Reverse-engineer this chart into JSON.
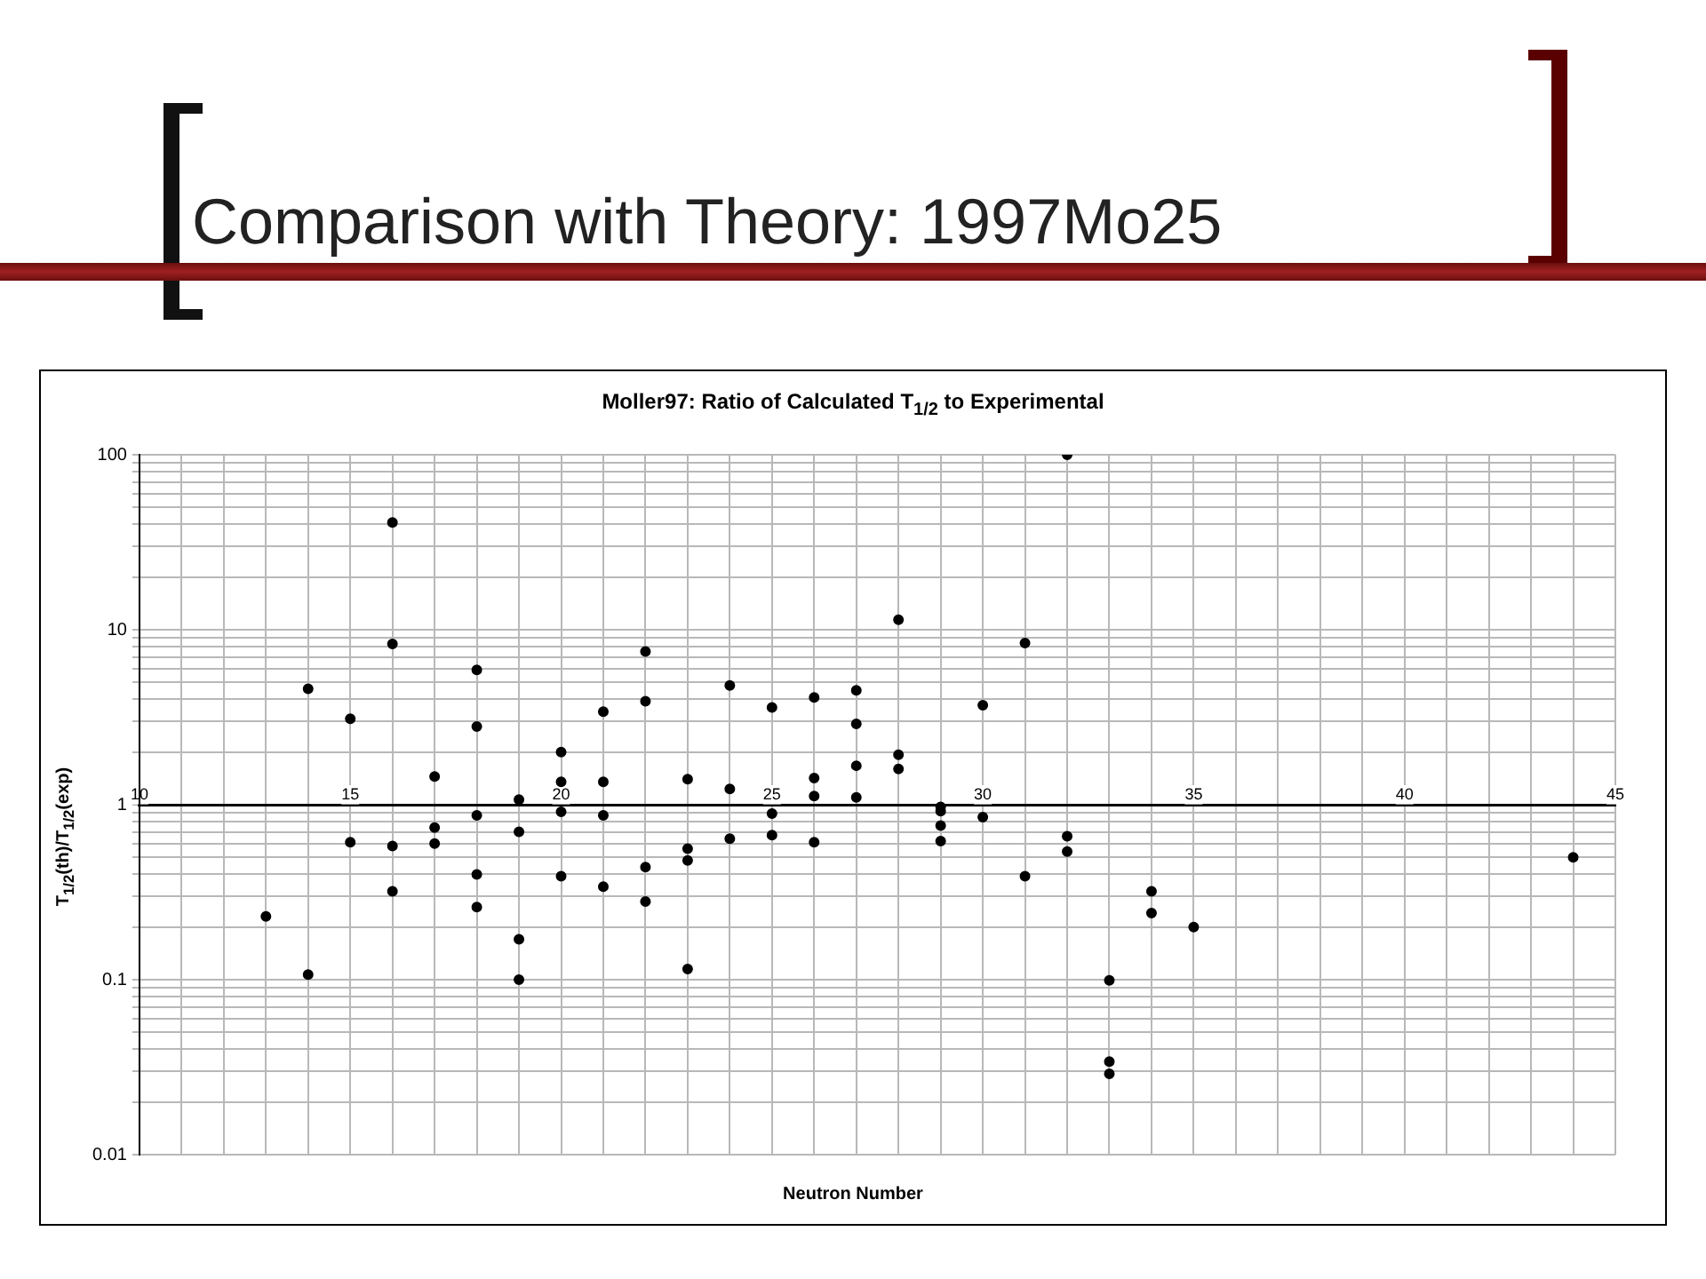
{
  "chart_data": {
    "type": "scatter",
    "title": "Comparison with Theory: 1997Mo25",
    "subtitle": "Moller97: Ratio of Calculated T$_{1/2}$ to Experimental",
    "xlabel": "Neutron Number",
    "ylabel": "T$_{1/2}$(th)/T$_{1/2}$(exp)",
    "log": "y",
    "grid": true,
    "legend": false,
    "marker": "circle",
    "xlim": [
      10,
      45
    ],
    "xticks": [
      10,
      {
        "value": 11,
        "label": null
      },
      {
        "value": 12,
        "label": null
      },
      {
        "value": 13,
        "label": null
      },
      {
        "value": 14,
        "label": null
      },
      15,
      {
        "value": 16,
        "label": null
      },
      {
        "value": 17,
        "label": null
      },
      {
        "value": 18,
        "label": null
      },
      {
        "value": 19,
        "label": null
      },
      20,
      {
        "value": 21,
        "label": null
      },
      {
        "value": 22,
        "label": null
      },
      {
        "value": 23,
        "label": null
      },
      {
        "value": 24,
        "label": null
      },
      25,
      {
        "value": 26,
        "label": null
      },
      {
        "value": 27,
        "label": null
      },
      {
        "value": 28,
        "label": null
      },
      {
        "value": 29,
        "label": null
      },
      30,
      {
        "value": 31,
        "label": null
      },
      {
        "value": 32,
        "label": null
      },
      {
        "value": 33,
        "label": null
      },
      {
        "value": 34,
        "label": null
      },
      35,
      {
        "value": 36,
        "label": null
      },
      {
        "value": 37,
        "label": null
      },
      {
        "value": 38,
        "label": null
      },
      {
        "value": 39,
        "label": null
      },
      40,
      {
        "value": 41,
        "label": null
      },
      {
        "value": 42,
        "label": null
      },
      {
        "value": 43,
        "label": null
      },
      {
        "value": 44,
        "label": null
      },
      45
    ],
    "ylim": [
      0.01,
      100
    ],
    "yticks": [
      0.01,
      {
        "value": 0.02,
        "label": null
      },
      {
        "value": 0.03,
        "label": null
      },
      {
        "value": 0.04,
        "label": null
      },
      {
        "value": 0.05,
        "label": null
      },
      {
        "value": 0.06,
        "label": null
      },
      {
        "value": 0.07,
        "label": null
      },
      {
        "value": 0.08,
        "label": null
      },
      {
        "value": 0.09,
        "label": null
      },
      0.1,
      {
        "value": 0.2,
        "label": null
      },
      {
        "value": 0.3,
        "label": null
      },
      {
        "value": 0.4,
        "label": null
      },
      {
        "value": 0.5,
        "label": null
      },
      {
        "value": 0.6,
        "label": null
      },
      {
        "value": 0.7,
        "label": null
      },
      {
        "value": 0.8,
        "label": null
      },
      {
        "value": 0.9,
        "label": null
      },
      1,
      {
        "value": 2,
        "label": null
      },
      {
        "value": 3,
        "label": null
      },
      {
        "value": 4,
        "label": null
      },
      {
        "value": 5,
        "label": null
      },
      {
        "value": 6,
        "label": null
      },
      {
        "value": 7,
        "label": null
      },
      {
        "value": 8,
        "label": null
      },
      {
        "value": 9,
        "label": null
      },
      10,
      {
        "value": 20,
        "label": null
      },
      {
        "value": 30,
        "label": null
      },
      {
        "value": 40,
        "label": null
      },
      {
        "value": 50,
        "label": null
      },
      {
        "value": 60,
        "label": null
      },
      {
        "value": 70,
        "label": null
      },
      {
        "value": 80,
        "label": null
      },
      {
        "value": 90,
        "label": null
      },
      100
    ],
    "series": [
      {
        "color": "#000000",
        "x": [
          13,
          14,
          14,
          15,
          15,
          16,
          16,
          16,
          16,
          17,
          17,
          17,
          18,
          18,
          18,
          18,
          18,
          19,
          19,
          19,
          19,
          20,
          20,
          20,
          20,
          21,
          21,
          21,
          21,
          22,
          22,
          22,
          22,
          23,
          23,
          23,
          23,
          24,
          24,
          24,
          25,
          25,
          25,
          26,
          26,
          26,
          26,
          27,
          27,
          27,
          27,
          28,
          28,
          28,
          29,
          29,
          29,
          29,
          30,
          30,
          31,
          31,
          32,
          32,
          32,
          33,
          33,
          33,
          34,
          34,
          35,
          44
        ],
        "values": [
          0.23,
          4.6,
          0.107,
          3.1,
          0.61,
          41,
          8.3,
          0.58,
          0.32,
          1.45,
          0.74,
          0.6,
          5.9,
          2.8,
          0.87,
          0.4,
          0.26,
          1.07,
          0.7,
          0.17,
          0.1,
          2,
          1.35,
          0.91,
          0.39,
          3.4,
          1.35,
          0.87,
          0.34,
          7.5,
          3.9,
          0.44,
          0.28,
          1.4,
          0.56,
          0.48,
          0.115,
          4.8,
          1.23,
          0.64,
          3.6,
          0.89,
          0.67,
          4.1,
          1.42,
          1.12,
          0.61,
          4.5,
          2.9,
          1.67,
          1.1,
          11.4,
          1.93,
          1.6,
          0.97,
          0.92,
          0.76,
          0.62,
          3.7,
          0.85,
          8.4,
          0.39,
          100,
          0.66,
          0.54,
          0.099,
          0.034,
          0.029,
          0.32,
          0.24,
          0.2,
          0.5
        ]
      }
    ]
  }
}
